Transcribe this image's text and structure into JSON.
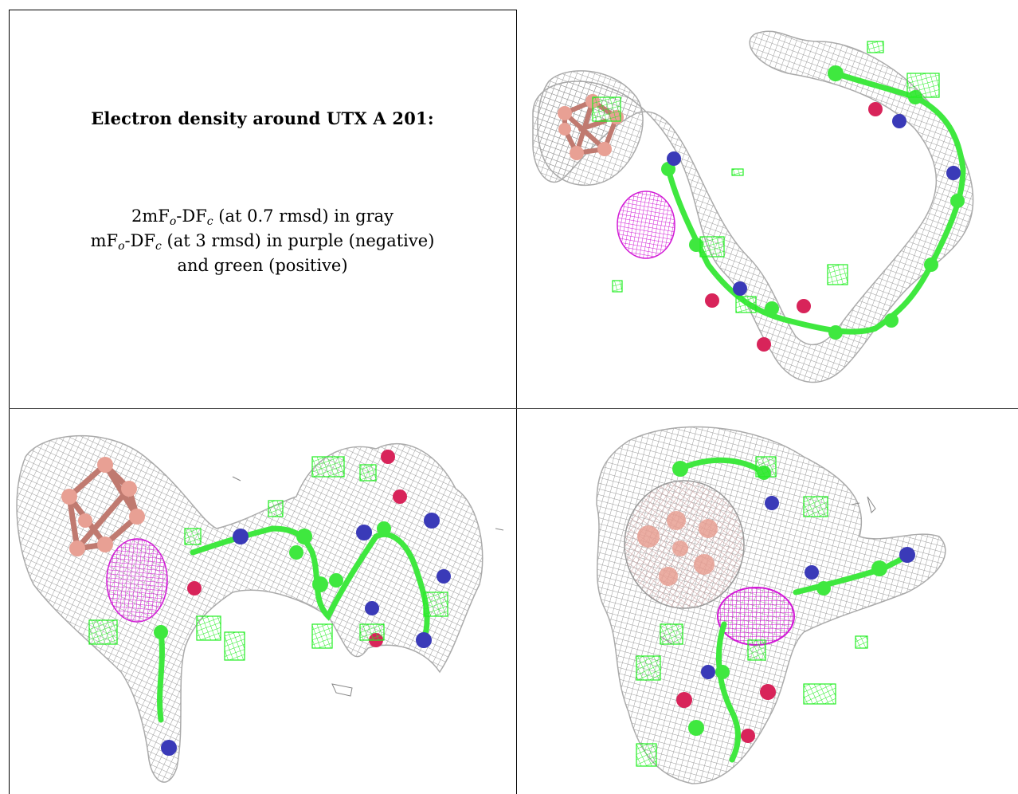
{
  "caption": {
    "title": "Electron density around UTX A 201:",
    "line1": {
      "a": "2mF",
      "a_sub": "o",
      "b": "-DF",
      "b_sub": "c",
      "rest": " (at 0.7 rmsd) in gray"
    },
    "line2": {
      "a": "mF",
      "a_sub": "o",
      "b": "-DF",
      "b_sub": "c",
      "rest": " (at 3 rmsd) in purple (negative)"
    },
    "line3": "and green (positive)"
  },
  "colors": {
    "mesh_gray": "#9a9a9a",
    "negative_purple": "#d21ad6",
    "positive_green": "#22ee22",
    "cluster_pink": "#e8a094",
    "nitrogen_blue": "#3a3ab8",
    "oxygen_red": "#d8245a",
    "carbon_green": "#3fe83f"
  },
  "panels": [
    {
      "name": "view-top-right",
      "content": "density-mesh-view"
    },
    {
      "name": "view-bottom-left",
      "content": "density-mesh-view"
    },
    {
      "name": "view-bottom-right",
      "content": "density-mesh-view"
    }
  ]
}
